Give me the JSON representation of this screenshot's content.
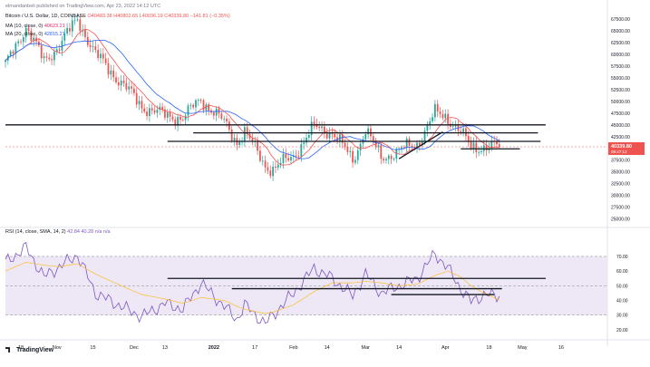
{
  "header": {
    "author_line": "elmandanbeli published on TradingView.com, Apr 23, 2022 14:12 UTC",
    "symbol_line": "Bitcoin / U.S. Dollar, 1D, COINBASE",
    "ohlc": "O40483.38 H40802.65 L40036.19 C40339.80 −141.81 (−0.35%)",
    "ma10_label": "MA (10, close, 0)",
    "ma10_value": "40623.21",
    "ma20_label": "MA (20, close, 0)",
    "ma20_value": "42815.27",
    "rsi_label": "RSI (14, close, SMA, 14, 2)",
    "rsi_values": "42.84  40.28  n/a  n/a",
    "price_badge": "40339.80",
    "price_badge_sub": "09:47:12",
    "footer_logo": "TradingView"
  },
  "colors": {
    "up": "#26a69a",
    "down": "#ef5350",
    "ma10": "#ef5350",
    "ma20": "#2962ff",
    "rsi": "#7e57c2",
    "rsi_sma": "#fbc02d",
    "level": "#131722",
    "rsi_band": "#ede7f6"
  },
  "chart_data": [
    {
      "type": "candlestick",
      "title": "Bitcoin / U.S. Dollar, 1D, COINBASE",
      "y_ticks": [
        "67500.00",
        "65000.00",
        "62500.00",
        "60000.00",
        "57500.00",
        "55000.00",
        "52500.00",
        "50000.00",
        "47500.00",
        "45000.00",
        "42500.00",
        "40000.00",
        "37500.00",
        "35000.00",
        "32500.00",
        "30000.00",
        "27500.00",
        "25000.00"
      ],
      "ylim": [
        23750,
        68500
      ],
      "x_ticks": [
        "18",
        "Nov",
        "15",
        "Dec",
        "13",
        "2022",
        "17",
        "Feb",
        "14",
        "Mar",
        "14",
        "Apr",
        "18",
        "May",
        "16"
      ],
      "close_path": [
        [
          "2021-10-12",
          57500
        ],
        [
          "2021-10-20",
          66000
        ],
        [
          "2021-10-27",
          58500
        ],
        [
          "2021-11-02",
          62000
        ],
        [
          "2021-11-09",
          67500
        ],
        [
          "2021-11-16",
          60000
        ],
        [
          "2021-11-26",
          54000
        ],
        [
          "2021-12-04",
          49000
        ],
        [
          "2021-12-13",
          47000
        ],
        [
          "2021-12-20",
          46500
        ],
        [
          "2021-12-27",
          50500
        ],
        [
          "2022-01-05",
          45500
        ],
        [
          "2022-01-10",
          41500
        ],
        [
          "2022-01-13",
          43500
        ],
        [
          "2022-01-21",
          36500
        ],
        [
          "2022-01-24",
          35500
        ],
        [
          "2022-02-01",
          38500
        ],
        [
          "2022-02-09",
          44500
        ],
        [
          "2022-02-16",
          43500
        ],
        [
          "2022-02-24",
          37500
        ],
        [
          "2022-03-01",
          44000
        ],
        [
          "2022-03-07",
          38000
        ],
        [
          "2022-03-14",
          39500
        ],
        [
          "2022-03-21",
          41000
        ],
        [
          "2022-03-28",
          47500
        ],
        [
          "2022-04-02",
          46500
        ],
        [
          "2022-04-07",
          43500
        ],
        [
          "2022-04-11",
          40000
        ],
        [
          "2022-04-16",
          40500
        ],
        [
          "2022-04-22",
          40339.8
        ]
      ],
      "series": [
        {
          "name": "MA (10, close, 0)",
          "last": 40623.21
        },
        {
          "name": "MA (20, close, 0)",
          "last": 42815.27
        }
      ],
      "levels": [
        {
          "price": 45000,
          "from": "2021-10-12",
          "to": "2022-05-10"
        },
        {
          "price": 43300,
          "from": "2021-12-24",
          "to": "2022-05-07"
        },
        {
          "price": 41500,
          "from": "2021-12-14",
          "to": "2022-05-08"
        },
        {
          "price": 39900,
          "from": "2022-04-07",
          "to": "2022-04-30"
        }
      ],
      "trendline": [
        [
          "2022-03-14",
          37800
        ],
        [
          "2022-03-31",
          43500
        ]
      ]
    },
    {
      "type": "line",
      "title": "RSI (14, close, SMA, 14, 2)",
      "y_ticks": [
        "70.00",
        "60.00",
        "50.00",
        "40.00",
        "30.00",
        "20.00"
      ],
      "ylim": [
        15,
        78
      ],
      "band": [
        30,
        70
      ],
      "midline": 50,
      "x": [
        "2021-10-12",
        "2021-10-20",
        "2021-10-27",
        "2021-11-02",
        "2021-11-09",
        "2021-11-16",
        "2021-11-26",
        "2021-12-04",
        "2021-12-13",
        "2021-12-20",
        "2021-12-27",
        "2022-01-05",
        "2022-01-10",
        "2022-01-13",
        "2022-01-21",
        "2022-01-24",
        "2022-02-01",
        "2022-02-09",
        "2022-02-16",
        "2022-02-24",
        "2022-03-01",
        "2022-03-07",
        "2022-03-14",
        "2022-03-21",
        "2022-03-28",
        "2022-04-02",
        "2022-04-07",
        "2022-04-11",
        "2022-04-16",
        "2022-04-22"
      ],
      "series": [
        {
          "name": "RSI",
          "values": [
            66,
            76,
            56,
            63,
            71,
            45,
            36,
            29,
            38,
            34,
            52,
            36,
            27,
            37,
            24,
            30,
            45,
            62,
            55,
            43,
            58,
            45,
            50,
            55,
            72,
            62,
            48,
            39,
            44,
            42.84
          ]
        },
        {
          "name": "SMA",
          "values": [
            60,
            66,
            64,
            63,
            65,
            58,
            50,
            44,
            41,
            38,
            42,
            40,
            36,
            34,
            31,
            32,
            37,
            46,
            52,
            52,
            53,
            52,
            50,
            51,
            57,
            60,
            56,
            50,
            45,
            40.28
          ]
        }
      ],
      "levels": [
        {
          "value": 55,
          "from": "2021-12-14",
          "to": "2022-05-10"
        },
        {
          "value": 48,
          "from": "2022-01-08",
          "to": "2022-04-23"
        },
        {
          "value": 44,
          "from": "2022-03-11",
          "to": "2022-04-20"
        }
      ]
    }
  ]
}
